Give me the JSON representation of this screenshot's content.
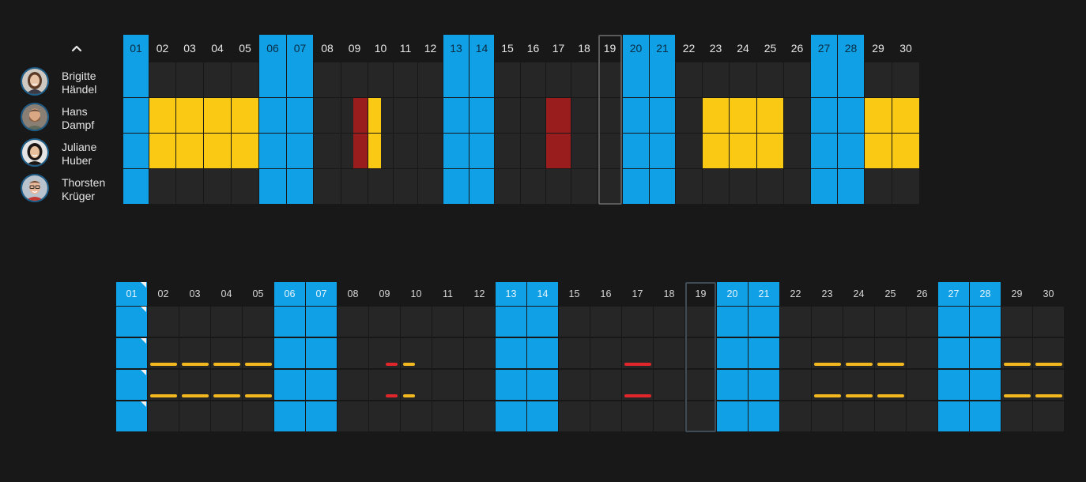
{
  "colors": {
    "workday": "#262626",
    "weekend": "#0fa0e6",
    "vacation": "#f9c914",
    "sick": "#9a1d1d",
    "today_border": "#5a5a5a",
    "header_text": "#e6e6e6",
    "bar_vacation": "#f2b81e",
    "bar_sick": "#e0262a"
  },
  "collapse_icon": "chevron-up-icon",
  "days": [
    "01",
    "02",
    "03",
    "04",
    "05",
    "06",
    "07",
    "08",
    "09",
    "10",
    "11",
    "12",
    "13",
    "14",
    "15",
    "16",
    "17",
    "18",
    "19",
    "20",
    "21",
    "22",
    "23",
    "24",
    "25",
    "26",
    "27",
    "28",
    "29",
    "30"
  ],
  "weekend_days": [
    "01",
    "06",
    "07",
    "13",
    "14",
    "20",
    "21",
    "27",
    "28"
  ],
  "today": "19",
  "people": [
    {
      "first": "Brigitte",
      "last": "Händel",
      "avatar": "avatar-woman-brown-hair",
      "absences": []
    },
    {
      "first": "Hans",
      "last": "Dampf",
      "avatar": "avatar-man-beard",
      "absences": [
        {
          "day": "02",
          "type": "vacation",
          "portion": "full"
        },
        {
          "day": "03",
          "type": "vacation",
          "portion": "full"
        },
        {
          "day": "04",
          "type": "vacation",
          "portion": "full"
        },
        {
          "day": "05",
          "type": "vacation",
          "portion": "full"
        },
        {
          "day": "09",
          "type": "sick",
          "portion": "second-half"
        },
        {
          "day": "10",
          "type": "vacation",
          "portion": "first-half"
        },
        {
          "day": "17",
          "type": "sick",
          "portion": "full"
        },
        {
          "day": "23",
          "type": "vacation",
          "portion": "full"
        },
        {
          "day": "24",
          "type": "vacation",
          "portion": "full"
        },
        {
          "day": "25",
          "type": "vacation",
          "portion": "full"
        },
        {
          "day": "29",
          "type": "vacation",
          "portion": "full"
        },
        {
          "day": "30",
          "type": "vacation",
          "portion": "full"
        }
      ]
    },
    {
      "first": "Juliane",
      "last": "Huber",
      "avatar": "avatar-woman-dark-hair",
      "absences": [
        {
          "day": "02",
          "type": "vacation",
          "portion": "full"
        },
        {
          "day": "03",
          "type": "vacation",
          "portion": "full"
        },
        {
          "day": "04",
          "type": "vacation",
          "portion": "full"
        },
        {
          "day": "05",
          "type": "vacation",
          "portion": "full"
        },
        {
          "day": "09",
          "type": "sick",
          "portion": "second-half"
        },
        {
          "day": "10",
          "type": "vacation",
          "portion": "first-half"
        },
        {
          "day": "17",
          "type": "sick",
          "portion": "full"
        },
        {
          "day": "23",
          "type": "vacation",
          "portion": "full"
        },
        {
          "day": "24",
          "type": "vacation",
          "portion": "full"
        },
        {
          "day": "25",
          "type": "vacation",
          "portion": "full"
        },
        {
          "day": "29",
          "type": "vacation",
          "portion": "full"
        },
        {
          "day": "30",
          "type": "vacation",
          "portion": "full"
        }
      ]
    },
    {
      "first": "Thorsten",
      "last": "Krüger",
      "avatar": "avatar-man-glasses",
      "absences": []
    }
  ],
  "compact_flags": [
    "01-row1",
    "01-row2",
    "01-row3",
    "01-row4",
    "01-header"
  ]
}
